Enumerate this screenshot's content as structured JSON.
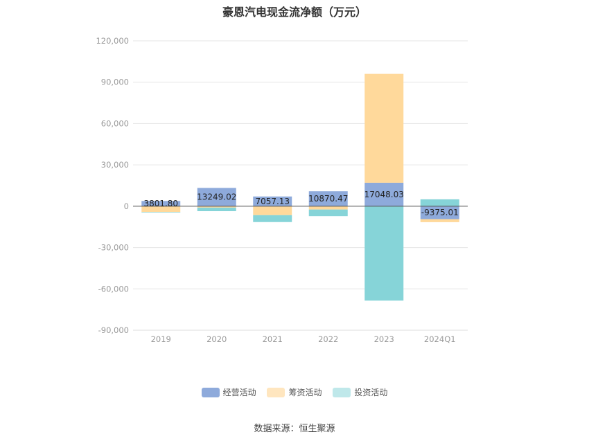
{
  "chart_data": {
    "type": "bar",
    "stacked": true,
    "title": "豪恩汽电现金流净额（万元）",
    "xlabel": "",
    "ylabel": "",
    "categories": [
      "2019",
      "2020",
      "2021",
      "2022",
      "2023",
      "2024Q1"
    ],
    "ylim": [
      -90000,
      120000
    ],
    "yticks": [
      120000,
      90000,
      60000,
      30000,
      0,
      -30000,
      -60000,
      -90000
    ],
    "ytick_labels": [
      "120,000",
      "90,000",
      "60,000",
      "30,000",
      "0",
      "-30,000",
      "-60,000",
      "-90,000"
    ],
    "grid": true,
    "legend_position": "bottom",
    "series": [
      {
        "name": "经营活动",
        "color": "#8eaadb",
        "values": [
          3801.8,
          13249.02,
          7057.13,
          10870.47,
          17048.03,
          -9375.01
        ]
      },
      {
        "name": "筹资活动",
        "color": "#ffd99b",
        "values": [
          -4200,
          -1000,
          -6500,
          -2400,
          79000,
          -2200
        ]
      },
      {
        "name": "投资活动",
        "color": "#86d4d8",
        "values": [
          -400,
          -2600,
          -5000,
          -4800,
          -68500,
          5000
        ]
      }
    ],
    "data_labels": [
      "3801.80",
      "13249.02",
      "7057.13",
      "10870.47",
      "17048.03",
      "-9375.01"
    ]
  },
  "legend": {
    "items": [
      {
        "label": "经营活动",
        "color": "#8eaadb"
      },
      {
        "label": "筹资活动",
        "color": "#ffe6bf"
      },
      {
        "label": "投资活动",
        "color": "#bfe8ea"
      }
    ]
  },
  "footer": {
    "source_text": "数据来源：恒生聚源"
  }
}
